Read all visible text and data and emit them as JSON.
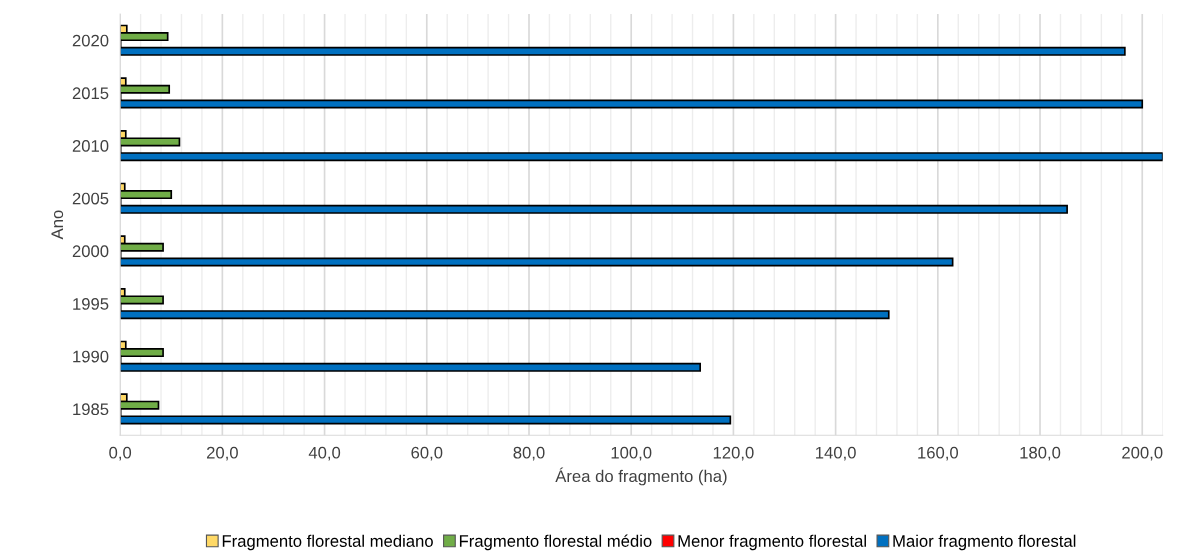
{
  "chart_data": {
    "type": "bar",
    "orientation": "horizontal",
    "xlabel": "Área do fragmento (ha)",
    "ylabel": "Ano",
    "categories": [
      "2020",
      "2015",
      "2010",
      "2005",
      "2000",
      "1995",
      "1990",
      "1985"
    ],
    "series": [
      {
        "name": "Fragmento florestal mediano",
        "color": "#ffd966",
        "values": [
          1.3,
          1.1,
          1.1,
          0.9,
          0.9,
          0.9,
          1.1,
          1.3
        ]
      },
      {
        "name": "Fragmento florestal médio",
        "color": "#70ad47",
        "values": [
          9.3,
          9.6,
          11.6,
          10.0,
          8.4,
          8.4,
          8.4,
          7.5
        ]
      },
      {
        "name": "Menor fragmento florestal",
        "color": "#ff0000",
        "values": [
          0.1,
          0.1,
          0.1,
          0.1,
          0.1,
          0.1,
          0.1,
          0.1
        ]
      },
      {
        "name": "Maior fragmento florestal",
        "color": "#0070c0",
        "values": [
          196.6,
          200.0,
          204.0,
          185.3,
          162.9,
          150.4,
          113.5,
          119.4
        ]
      }
    ],
    "xlim": [
      0,
      204
    ],
    "xticks": [
      {
        "value": 0,
        "label": "0,0"
      },
      {
        "value": 20,
        "label": "20,0"
      },
      {
        "value": 40,
        "label": "40,0"
      },
      {
        "value": 60,
        "label": "60,0"
      },
      {
        "value": 80,
        "label": "80,0"
      },
      {
        "value": 100,
        "label": "100,0"
      },
      {
        "value": 120,
        "label": "120,0"
      },
      {
        "value": 140,
        "label": "140,0"
      },
      {
        "value": 160,
        "label": "160,0"
      },
      {
        "value": 180,
        "label": "180,0"
      },
      {
        "value": 200,
        "label": "200,0"
      }
    ],
    "grid": "x",
    "legend": "bottom"
  }
}
